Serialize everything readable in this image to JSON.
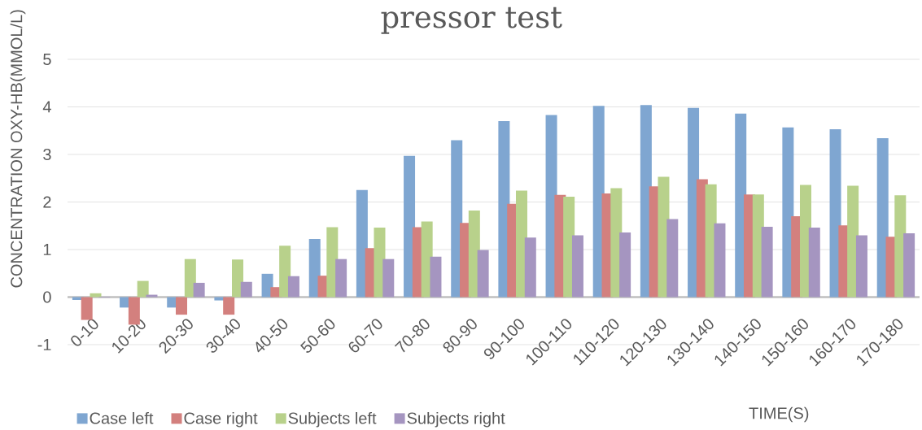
{
  "chart_data": {
    "type": "bar",
    "title": "pressor test",
    "xlabel": "TIME(S)",
    "ylabel": "CONCENTRATION OXY-HB(MMOL/L)",
    "categories": [
      "0-10",
      "10-20",
      "20-30",
      "30-40",
      "40-50",
      "50-60",
      "60-70",
      "70-80",
      "80-90",
      "90-100",
      "100-110",
      "110-120",
      "120-130",
      "130-140",
      "140-150",
      "150-160",
      "160-170",
      "170-180"
    ],
    "series": [
      {
        "name": "Case  left",
        "color": "#7FA6D1",
        "values": [
          -0.06,
          -0.22,
          -0.22,
          -0.07,
          0.49,
          1.22,
          2.25,
          2.97,
          3.3,
          3.7,
          3.83,
          4.02,
          4.04,
          3.98,
          3.86,
          3.57,
          3.53,
          3.34
        ]
      },
      {
        "name": "Case right",
        "color": "#D3807E",
        "values": [
          -0.48,
          -0.58,
          -0.37,
          -0.37,
          0.21,
          0.45,
          1.03,
          1.47,
          1.56,
          1.96,
          2.15,
          2.18,
          2.33,
          2.48,
          2.16,
          1.7,
          1.51,
          1.27
        ]
      },
      {
        "name": "Subjects left",
        "color": "#B8D18B",
        "values": [
          0.08,
          0.34,
          0.8,
          0.79,
          1.08,
          1.47,
          1.46,
          1.59,
          1.82,
          2.24,
          2.11,
          2.29,
          2.53,
          2.37,
          2.16,
          2.36,
          2.34,
          2.14
        ]
      },
      {
        "name": "Subjects right",
        "color": "#A595C0",
        "values": [
          -0.01,
          0.05,
          0.3,
          0.32,
          0.44,
          0.8,
          0.8,
          0.85,
          0.99,
          1.25,
          1.3,
          1.36,
          1.64,
          1.55,
          1.48,
          1.46,
          1.3,
          1.34
        ]
      }
    ],
    "ylim": [
      -1,
      5
    ],
    "yticks": [
      -1,
      0,
      1,
      2,
      3,
      4,
      5
    ],
    "grid": "y",
    "legend": "bottom left"
  }
}
